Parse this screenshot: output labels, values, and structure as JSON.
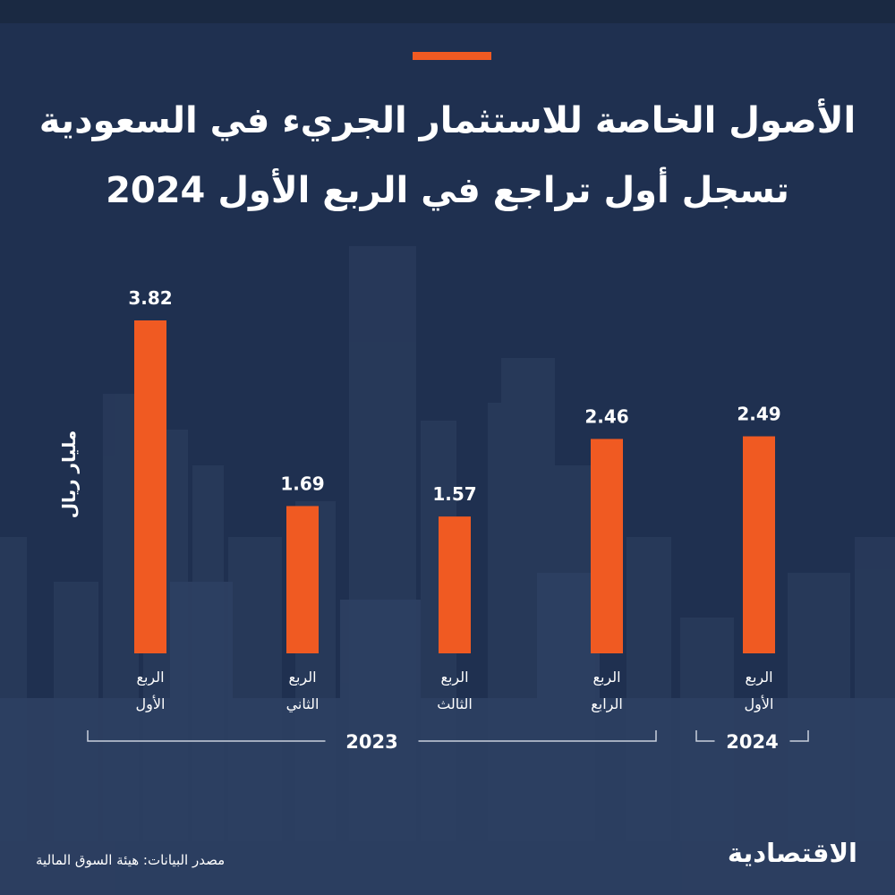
{
  "headline": {
    "line1": "الأصول الخاصة للاستثمار الجريء في السعودية",
    "line2": "تسجل أول تراجع في الربع الأول 2024"
  },
  "footer": {
    "source": "مصدر البيانات: هيئة السوق المالية",
    "logo": "الاقتصادية"
  },
  "colors": {
    "bar": "#f05a22",
    "background": "#1f3050",
    "text": "#ffffff"
  },
  "chart_data": {
    "type": "bar",
    "ylabel": "مليار ريال",
    "ylim": [
      0,
      3.82
    ],
    "categories": [
      {
        "line1": "الربع",
        "line2": "الأول",
        "year": "2023"
      },
      {
        "line1": "الربع",
        "line2": "الثاني",
        "year": "2023"
      },
      {
        "line1": "الربع",
        "line2": "الثالث",
        "year": "2023"
      },
      {
        "line1": "الربع",
        "line2": "الرابع",
        "year": "2023"
      },
      {
        "line1": "الربع",
        "line2": "الأول",
        "year": "2024"
      }
    ],
    "values": [
      3.82,
      1.69,
      1.57,
      2.46,
      2.49
    ],
    "value_labels": [
      "3.82",
      "1.69",
      "1.57",
      "2.46",
      "2.49"
    ],
    "groups": [
      {
        "label": "2023",
        "first": 0,
        "last": 3
      },
      {
        "label": "2024",
        "first": 4,
        "last": 4
      }
    ]
  }
}
